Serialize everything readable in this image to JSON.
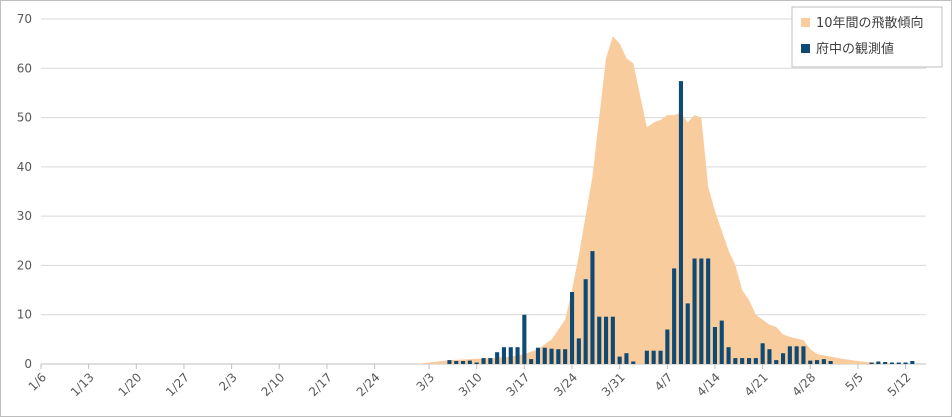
{
  "chart_data": {
    "type": "bar+area",
    "title": "",
    "xlabel": "",
    "ylabel": "",
    "ylim": [
      0,
      70
    ],
    "yticks": [
      0,
      10,
      20,
      30,
      40,
      50,
      60,
      70
    ],
    "grid": "horizontal",
    "legend_position": "top-right",
    "start_date": "1/6",
    "xticks": [
      "1/6",
      "1/13",
      "1/20",
      "1/27",
      "2/3",
      "2/10",
      "2/17",
      "2/24",
      "3/3",
      "3/10",
      "3/17",
      "3/24",
      "3/31",
      "4/7",
      "4/14",
      "4/21",
      "4/28",
      "5/5",
      "5/12"
    ],
    "series": [
      {
        "name": "10年間の飛散傾向",
        "kind": "area",
        "color": "#f9cc9d",
        "points": [
          [
            "3/1",
            0
          ],
          [
            "3/3",
            0.3
          ],
          [
            "3/6",
            0.8
          ],
          [
            "3/9",
            1
          ],
          [
            "3/12",
            1.2
          ],
          [
            "3/15",
            1.5
          ],
          [
            "3/17",
            2
          ],
          [
            "3/19",
            3
          ],
          [
            "3/21",
            5
          ],
          [
            "3/23",
            9
          ],
          [
            "3/24",
            15
          ],
          [
            "3/25",
            22
          ],
          [
            "3/27",
            38
          ],
          [
            "3/29",
            62
          ],
          [
            "3/30",
            66.5
          ],
          [
            "3/31",
            65
          ],
          [
            "4/1",
            62
          ],
          [
            "4/2",
            61
          ],
          [
            "4/4",
            48
          ],
          [
            "4/5",
            49
          ],
          [
            "4/6",
            49.5
          ],
          [
            "4/7",
            50.5
          ],
          [
            "4/8",
            50.5
          ],
          [
            "4/9",
            51
          ],
          [
            "4/10",
            49
          ],
          [
            "4/11",
            50.5
          ],
          [
            "4/12",
            50
          ],
          [
            "4/13",
            36
          ],
          [
            "4/14",
            31
          ],
          [
            "4/16",
            23
          ],
          [
            "4/17",
            20
          ],
          [
            "4/18",
            15
          ],
          [
            "4/19",
            13
          ],
          [
            "4/20",
            10
          ],
          [
            "4/22",
            8
          ],
          [
            "4/23",
            7.5
          ],
          [
            "4/24",
            6
          ],
          [
            "4/25",
            5.5
          ],
          [
            "4/27",
            4.8
          ],
          [
            "4/28",
            3
          ],
          [
            "4/29",
            2
          ],
          [
            "5/1",
            1.5
          ],
          [
            "5/3",
            1
          ],
          [
            "5/5",
            0.6
          ],
          [
            "5/7",
            0.3
          ],
          [
            "5/9",
            0.1
          ],
          [
            "5/13",
            0
          ]
        ]
      },
      {
        "name": "府中の観測値",
        "kind": "bar",
        "color": "#0e4a74",
        "points": [
          [
            "3/6",
            0.8
          ],
          [
            "3/7",
            0.6
          ],
          [
            "3/8",
            0.6
          ],
          [
            "3/9",
            0.7
          ],
          [
            "3/10",
            0.3
          ],
          [
            "3/11",
            1.2
          ],
          [
            "3/12",
            1.2
          ],
          [
            "3/13",
            2.4
          ],
          [
            "3/14",
            3.4
          ],
          [
            "3/15",
            3.4
          ],
          [
            "3/16",
            3.4
          ],
          [
            "3/17",
            10
          ],
          [
            "3/18",
            1
          ],
          [
            "3/19",
            3.3
          ],
          [
            "3/20",
            3.3
          ],
          [
            "3/21",
            3.1
          ],
          [
            "3/22",
            3
          ],
          [
            "3/23",
            3
          ],
          [
            "3/24",
            14.6
          ],
          [
            "3/25",
            5.2
          ],
          [
            "3/26",
            17.2
          ],
          [
            "3/27",
            22.9
          ],
          [
            "3/28",
            9.6
          ],
          [
            "3/29",
            9.6
          ],
          [
            "3/30",
            9.6
          ],
          [
            "3/31",
            1.5
          ],
          [
            "4/1",
            2.2
          ],
          [
            "4/2",
            0.5
          ],
          [
            "4/4",
            2.7
          ],
          [
            "4/5",
            2.7
          ],
          [
            "4/6",
            2.7
          ],
          [
            "4/7",
            7
          ],
          [
            "4/8",
            19.4
          ],
          [
            "4/9",
            57.4
          ],
          [
            "4/10",
            12.3
          ],
          [
            "4/11",
            21.4
          ],
          [
            "4/12",
            21.4
          ],
          [
            "4/13",
            21.4
          ],
          [
            "4/14",
            7.5
          ],
          [
            "4/15",
            8.8
          ],
          [
            "4/16",
            3.4
          ],
          [
            "4/17",
            1.2
          ],
          [
            "4/18",
            1.2
          ],
          [
            "4/19",
            1.2
          ],
          [
            "4/20",
            1.2
          ],
          [
            "4/21",
            4.2
          ],
          [
            "4/22",
            3
          ],
          [
            "4/23",
            0.8
          ],
          [
            "4/24",
            2.2
          ],
          [
            "4/25",
            3.6
          ],
          [
            "4/26",
            3.6
          ],
          [
            "4/27",
            3.6
          ],
          [
            "4/28",
            0.7
          ],
          [
            "4/29",
            0.8
          ],
          [
            "4/30",
            1
          ],
          [
            "5/1",
            0.6
          ],
          [
            "5/7",
            0.3
          ],
          [
            "5/8",
            0.5
          ],
          [
            "5/9",
            0.4
          ],
          [
            "5/10",
            0.3
          ],
          [
            "5/11",
            0.3
          ],
          [
            "5/12",
            0.3
          ],
          [
            "5/13",
            0.6
          ]
        ]
      }
    ]
  }
}
